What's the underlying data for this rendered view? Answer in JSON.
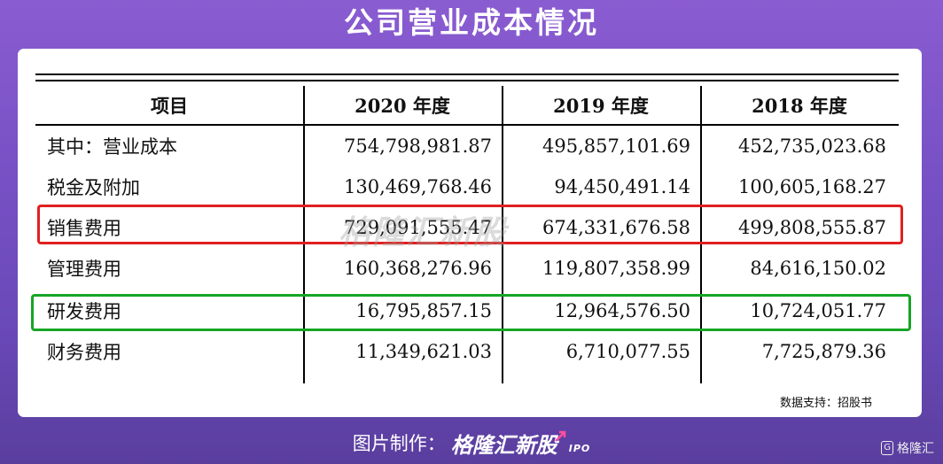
{
  "title": "公司营业成本情况",
  "table": {
    "headers": [
      "项目",
      "2020 年度",
      "2019 年度",
      "2018 年度"
    ],
    "rows": [
      {
        "label": "其中：营业成本",
        "values": [
          "754,798,981.87",
          "495,857,101.69",
          "452,735,023.68"
        ],
        "highlight": ""
      },
      {
        "label": "税金及附加",
        "values": [
          "130,469,768.46",
          "94,450,491.14",
          "100,605,168.27"
        ],
        "highlight": ""
      },
      {
        "label": "销售费用",
        "values": [
          "729,091,555.47",
          "674,331,676.58",
          "499,808,555.87"
        ],
        "highlight": "red"
      },
      {
        "label": "管理费用",
        "values": [
          "160,368,276.96",
          "119,807,358.99",
          "84,616,150.02"
        ],
        "highlight": ""
      },
      {
        "label": "研发费用",
        "values": [
          "16,795,857.15",
          "12,964,576.50",
          "10,724,051.77"
        ],
        "highlight": "green"
      },
      {
        "label": "财务费用",
        "values": [
          "11,349,621.03",
          "6,710,077.55",
          "7,725,879.36"
        ],
        "highlight": ""
      }
    ]
  },
  "chart_data": {
    "type": "table",
    "title": "公司营业成本情况",
    "columns": [
      "项目",
      "2020 年度",
      "2019 年度",
      "2018 年度"
    ],
    "rows": [
      [
        "其中：营业成本",
        754798981.87,
        495857101.69,
        452735023.68
      ],
      [
        "税金及附加",
        130469768.46,
        94450491.14,
        100605168.27
      ],
      [
        "销售费用",
        729091555.47,
        674331676.58,
        499808555.87
      ],
      [
        "管理费用",
        160368276.96,
        119807358.99,
        84616150.02
      ],
      [
        "研发费用",
        16795857.15,
        12964576.5,
        10724051.77
      ],
      [
        "财务费用",
        11349621.03,
        6710077.55,
        7725879.36
      ]
    ]
  },
  "colors": {
    "highlight_red": "#e02020",
    "highlight_green": "#16a526",
    "background": "#7a52c8"
  },
  "watermark": "格隆汇新股",
  "source": "数据支持：招股书",
  "footer": {
    "label": "图片制作：",
    "brand": "格隆汇新股",
    "suffix": "IPO"
  },
  "corner_logo": {
    "badge": "G",
    "text": "格隆汇"
  }
}
